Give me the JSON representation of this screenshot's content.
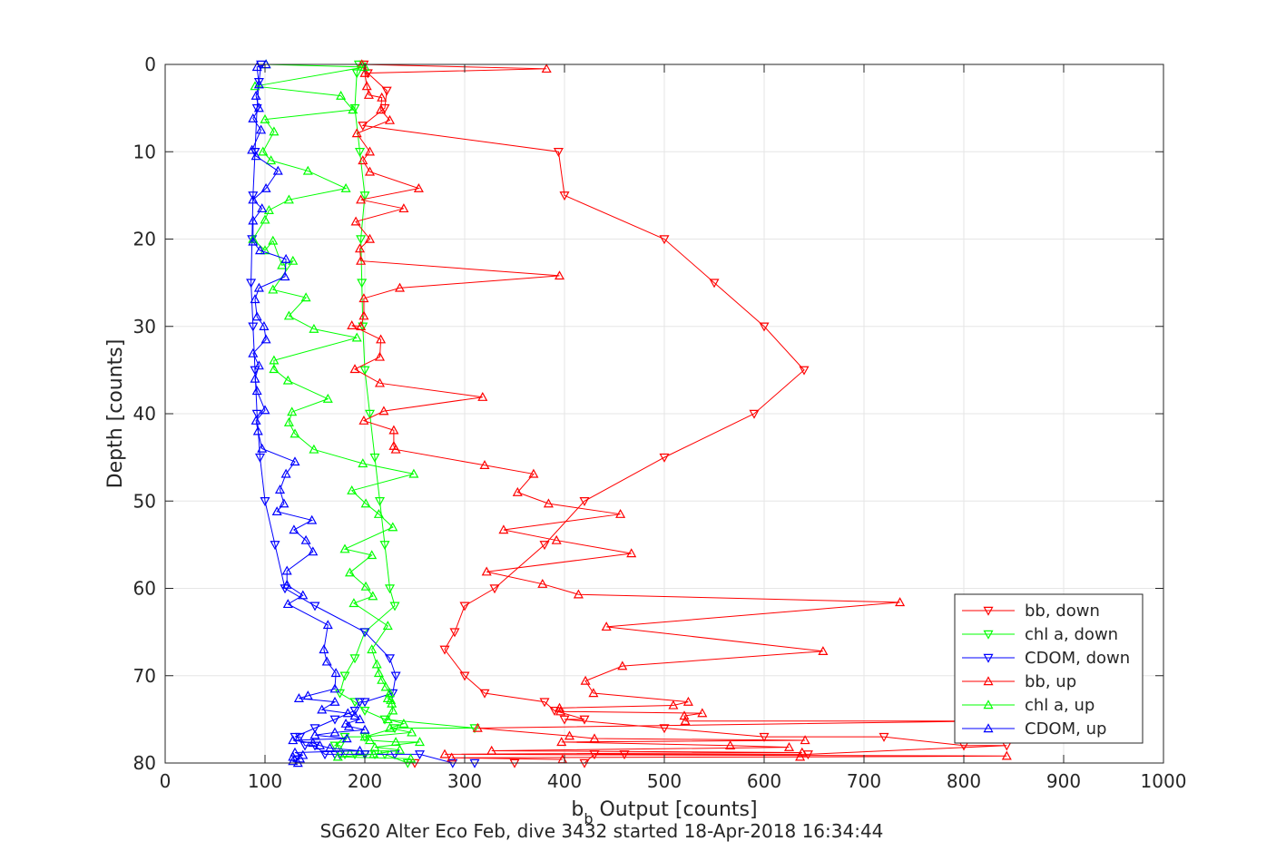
{
  "chart_data": {
    "type": "line",
    "title": "",
    "xlabel_main": "b",
    "xlabel_sub": "b",
    "xlabel_rest": " Output [counts]",
    "caption": "SG620 Alter Eco Feb, dive 3432 started 18-Apr-2018 16:34:44",
    "ylabel": "Depth [counts]",
    "xlim": [
      0,
      1000
    ],
    "ylim": [
      0,
      80
    ],
    "y_reversed": true,
    "grid": true,
    "legend_position": "bottom-right",
    "xticks": [
      "0",
      "100",
      "200",
      "300",
      "400",
      "500",
      "600",
      "700",
      "800",
      "900",
      "1000"
    ],
    "yticks": [
      "0",
      "10",
      "20",
      "30",
      "40",
      "50",
      "60",
      "70",
      "80"
    ],
    "series": [
      {
        "name": "bb, down",
        "color": "#ff0000",
        "marker": "triangle-down",
        "x": [
          199,
          203,
          222,
          220,
          198,
          394,
          400,
          500,
          550,
          600,
          640,
          590,
          500,
          420,
          380,
          330,
          300,
          290,
          280,
          300,
          320,
          380,
          390,
          420,
          400,
          500,
          600,
          720,
          800,
          843,
          644,
          460,
          430,
          420,
          350,
          250
        ],
        "y": [
          0,
          1,
          3,
          5,
          7,
          10,
          15,
          20,
          25,
          30,
          35,
          40,
          45,
          50,
          55,
          60,
          62,
          65,
          67,
          70,
          72,
          73,
          74,
          75,
          75,
          76,
          77,
          77,
          78,
          78,
          79,
          79,
          79,
          80,
          80,
          80
        ]
      },
      {
        "name": "chl a, down",
        "color": "#00ff00",
        "marker": "triangle-down",
        "x": [
          194,
          192,
          190,
          195,
          200,
          196,
          197,
          198,
          200,
          205,
          210,
          215,
          220,
          225,
          230,
          200,
          190,
          180,
          175,
          190,
          200,
          220,
          310,
          230,
          200,
          180,
          170,
          175,
          180,
          190,
          200,
          210,
          220,
          243
        ],
        "y": [
          0,
          1,
          5,
          10,
          15,
          20,
          25,
          30,
          35,
          40,
          45,
          50,
          55,
          60,
          62,
          65,
          68,
          70,
          72,
          73,
          74,
          75,
          76,
          76,
          77,
          77,
          78,
          78,
          79,
          79,
          79,
          79,
          79,
          80
        ]
      },
      {
        "name": "CDOM, down",
        "color": "#0000ff",
        "marker": "triangle-down",
        "x": [
          96,
          94,
          92,
          90,
          88,
          87,
          86,
          88,
          90,
          92,
          95,
          100,
          110,
          120,
          150,
          200,
          225,
          231,
          228,
          200,
          195,
          190,
          170,
          150,
          130,
          135,
          140,
          150,
          160,
          170,
          175,
          200,
          230,
          255,
          288,
          310
        ],
        "y": [
          0,
          2,
          5,
          10,
          15,
          20,
          25,
          30,
          35,
          40,
          45,
          50,
          55,
          60,
          62,
          65,
          68,
          70,
          72,
          73,
          73,
          74,
          75,
          76,
          77,
          77,
          78,
          78,
          79,
          79,
          79,
          79,
          79,
          79,
          80,
          80
        ]
      },
      {
        "name": "bb, up",
        "color": "#ff0000",
        "marker": "triangle-up",
        "x": [
          197,
          382,
          200,
          202,
          204,
          217,
          216,
          225,
          192,
          205,
          198,
          205,
          254,
          196,
          239,
          191,
          205,
          195,
          196,
          395,
          235,
          199,
          199,
          196,
          187,
          216,
          215,
          190,
          215,
          318,
          219,
          199,
          229,
          229,
          231,
          320,
          369,
          353,
          384,
          456,
          339,
          392,
          467,
          322,
          378,
          414,
          736,
          442,
          659,
          458,
          421,
          429,
          524,
          509,
          395,
          396,
          538,
          520,
          521,
          825,
          313,
          405,
          430,
          641,
          397,
          566,
          625,
          327,
          638,
          280,
          843,
          636,
          287,
          398
        ],
        "y": [
          0,
          0.5,
          1,
          2.5,
          3.5,
          3.8,
          5.2,
          6.4,
          7.9,
          10,
          11,
          12.3,
          14.2,
          15.5,
          16.5,
          18,
          20,
          21.1,
          22.5,
          24.2,
          25.6,
          26.8,
          28.8,
          30,
          29.9,
          31.5,
          33.5,
          34.9,
          36.5,
          38.1,
          39.7,
          40.8,
          41.9,
          43.7,
          44.1,
          45.9,
          46.9,
          49,
          50.3,
          51.5,
          53.3,
          54.5,
          56,
          58.1,
          59.5,
          60.7,
          61.6,
          64.4,
          67.2,
          68.9,
          70.6,
          72,
          73,
          73.4,
          73.7,
          74.1,
          74.3,
          74.6,
          75.2,
          75.2,
          76,
          76.9,
          77.2,
          77.4,
          77.6,
          78,
          78.2,
          78.6,
          78.8,
          79,
          79.2,
          79.3,
          79.4,
          79.6
        ],
        "note": ""
      },
      {
        "name": "chl a, up",
        "color": "#00ff00",
        "marker": "triangle-up",
        "x": [
          101,
          200,
          90,
          176,
          188,
          100,
          109,
          98,
          106,
          143,
          181,
          124,
          104,
          100,
          88,
          100,
          108,
          117,
          128,
          108,
          141,
          124,
          149,
          192,
          109,
          109,
          123,
          163,
          127,
          124,
          130,
          149,
          198,
          249,
          187,
          201,
          214,
          228,
          180,
          207,
          185,
          201,
          208,
          189,
          223,
          207,
          212,
          214,
          217,
          221,
          225,
          223,
          226,
          227,
          228,
          223,
          239,
          225,
          247,
          200,
          205,
          231,
          255,
          210,
          235,
          209,
          173,
          246
        ],
        "y": [
          0,
          0.3,
          2.5,
          3.6,
          5.2,
          6.3,
          7.7,
          10,
          11,
          12.2,
          14.2,
          15.5,
          16.7,
          17.8,
          20,
          21.3,
          20.2,
          23,
          22.5,
          25.8,
          26.7,
          28.8,
          30.3,
          31.3,
          33.9,
          34.9,
          36.2,
          38.3,
          39.8,
          41,
          42.3,
          44.1,
          45.7,
          46.9,
          48.8,
          50.3,
          51.5,
          53,
          55.5,
          56.2,
          58.2,
          59.8,
          60.9,
          61.7,
          64.3,
          67,
          68.7,
          69.7,
          70.5,
          71.3,
          72,
          72.6,
          72.8,
          73.2,
          74,
          75,
          75.5,
          76,
          76.5,
          77,
          77.4,
          77.6,
          77.6,
          78.2,
          78.5,
          79,
          79.3,
          79.5
        ],
        "note": ""
      },
      {
        "name": "CDOM, up",
        "color": "#0000ff",
        "marker": "triangle-up",
        "x": [
          101,
          92,
          94,
          91,
          94,
          88,
          96,
          87,
          91,
          113,
          101,
          88,
          97,
          88,
          88,
          95,
          121,
          120,
          94,
          90,
          92,
          99,
          101,
          88,
          94,
          90,
          92,
          100,
          91,
          93,
          97,
          130,
          121,
          115,
          119,
          112,
          147,
          129,
          141,
          148,
          122,
          122,
          138,
          123,
          163,
          159,
          162,
          171,
          170,
          143,
          134,
          170,
          157,
          183,
          190,
          195,
          181,
          184,
          200,
          170,
          150,
          182,
          128,
          148,
          155,
          165,
          195,
          130,
          138,
          128,
          135,
          128,
          133
        ],
        "y": [
          0,
          0.3,
          2.3,
          3.6,
          5,
          6.2,
          7.5,
          9.8,
          10.5,
          12.2,
          14.2,
          15.5,
          16.5,
          17.9,
          20.3,
          21.3,
          22.3,
          24.3,
          25.6,
          26.9,
          28.9,
          30,
          31.5,
          33.1,
          34.5,
          36,
          37.4,
          39.6,
          40.8,
          42,
          44,
          45.5,
          46.9,
          48.7,
          50.3,
          51.2,
          52.2,
          53.3,
          54.5,
          55.8,
          58,
          59.6,
          60.8,
          61.8,
          64.2,
          67,
          68.4,
          69.7,
          71.5,
          72.3,
          72.6,
          73,
          73.9,
          74.3,
          74.6,
          75,
          75.5,
          75.8,
          76.2,
          76.5,
          76.8,
          77.2,
          77.4,
          77.7,
          78,
          78.3,
          78.6,
          78.8,
          79.1,
          79.3,
          79.5,
          79.8,
          80
        ],
        "note": ""
      }
    ]
  }
}
